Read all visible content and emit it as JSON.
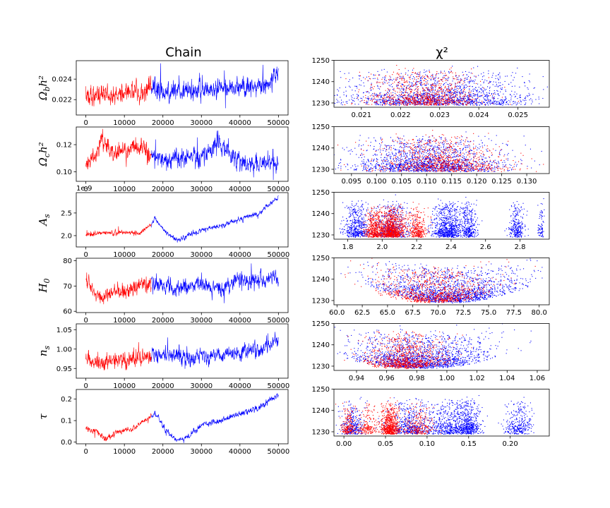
{
  "figure": {
    "left_title": "Chain",
    "right_title": "χ²",
    "colors": {
      "burn_in": "#ff0000",
      "chain": "#0000ff"
    }
  },
  "chart_data": [
    {
      "type": "line",
      "panel": "chain",
      "ylabel": "Ω_b h²",
      "title": "",
      "series": [
        {
          "name": "",
          "color": "#ff0000"
        },
        {
          "name": "",
          "color": "#0000ff"
        }
      ],
      "x_range": [
        0,
        50000
      ],
      "ylim": [
        0.0205,
        0.0258
      ],
      "burn_in_end": 17000,
      "x_ticks": [
        0,
        10000,
        20000,
        30000,
        40000,
        50000
      ],
      "x_tick_labels": [
        "0",
        "10000",
        "20000",
        "30000",
        "40000",
        "50000"
      ],
      "y_ticks": [
        0.022,
        0.024
      ],
      "y_tick_labels": [
        "0.022",
        "0.024"
      ],
      "trend": [
        [
          0,
          0.0225
        ],
        [
          5000,
          0.0224
        ],
        [
          10000,
          0.0227
        ],
        [
          17000,
          0.0232
        ],
        [
          20000,
          0.0228
        ],
        [
          30000,
          0.0229
        ],
        [
          40000,
          0.0232
        ],
        [
          45000,
          0.0232
        ],
        [
          50000,
          0.0244
        ]
      ],
      "noise": 0.0006
    },
    {
      "type": "line",
      "panel": "chain",
      "ylabel": "Ω_c h²",
      "title": "",
      "series": [
        {
          "name": "",
          "color": "#ff0000"
        },
        {
          "name": "",
          "color": "#0000ff"
        }
      ],
      "x_range": [
        0,
        50000
      ],
      "ylim": [
        0.093,
        0.133
      ],
      "burn_in_end": 17000,
      "x_ticks": [
        0,
        10000,
        20000,
        30000,
        40000,
        50000
      ],
      "x_tick_labels": [
        "0",
        "10000",
        "20000",
        "30000",
        "40000",
        "50000"
      ],
      "y_ticks": [
        0.1,
        0.12
      ],
      "y_tick_labels": [
        "0.10",
        "0.12"
      ],
      "trend": [
        [
          0,
          0.106
        ],
        [
          2500,
          0.112
        ],
        [
          4000,
          0.126
        ],
        [
          7000,
          0.114
        ],
        [
          10000,
          0.115
        ],
        [
          13000,
          0.118
        ],
        [
          17000,
          0.112
        ],
        [
          22000,
          0.109
        ],
        [
          27000,
          0.112
        ],
        [
          30000,
          0.11
        ],
        [
          34000,
          0.12
        ],
        [
          38000,
          0.114
        ],
        [
          42000,
          0.103
        ],
        [
          46000,
          0.108
        ],
        [
          50000,
          0.107
        ]
      ],
      "noise": 0.004
    },
    {
      "type": "line",
      "panel": "chain",
      "ylabel": "A_s",
      "title": "",
      "series": [
        {
          "name": "",
          "color": "#ff0000"
        },
        {
          "name": "",
          "color": "#0000ff"
        }
      ],
      "x_range": [
        0,
        50000
      ],
      "ylim": [
        1.75,
        2.95
      ],
      "burn_in_end": 17000,
      "offset_text": "1e-9",
      "x_ticks": [
        0,
        10000,
        20000,
        30000,
        40000,
        50000
      ],
      "x_tick_labels": [
        "0",
        "10000",
        "20000",
        "30000",
        "40000",
        "50000"
      ],
      "y_ticks": [
        2.0,
        2.5
      ],
      "y_tick_labels": [
        "2.0",
        "2.5"
      ],
      "trend": [
        [
          0,
          2.02
        ],
        [
          5000,
          2.05
        ],
        [
          10000,
          2.07
        ],
        [
          14000,
          2.05
        ],
        [
          17000,
          2.25
        ],
        [
          18000,
          2.38
        ],
        [
          21000,
          2.05
        ],
        [
          24000,
          1.88
        ],
        [
          27000,
          2.03
        ],
        [
          30000,
          2.12
        ],
        [
          35000,
          2.22
        ],
        [
          40000,
          2.36
        ],
        [
          45000,
          2.5
        ],
        [
          48000,
          2.72
        ],
        [
          50000,
          2.85
        ]
      ],
      "noise": 0.03
    },
    {
      "type": "line",
      "panel": "chain",
      "ylabel": "H_0",
      "title": "",
      "series": [
        {
          "name": "",
          "color": "#ff0000"
        },
        {
          "name": "",
          "color": "#0000ff"
        }
      ],
      "x_range": [
        0,
        50000
      ],
      "ylim": [
        59.5,
        81
      ],
      "burn_in_end": 17000,
      "x_ticks": [
        0,
        10000,
        20000,
        30000,
        40000,
        50000
      ],
      "x_tick_labels": [
        "0",
        "10000",
        "20000",
        "30000",
        "40000",
        "50000"
      ],
      "y_ticks": [
        60,
        70,
        80
      ],
      "y_tick_labels": [
        "60",
        "70",
        "80"
      ],
      "trend": [
        [
          0,
          72
        ],
        [
          3000,
          67
        ],
        [
          5000,
          65
        ],
        [
          8000,
          69
        ],
        [
          10000,
          67
        ],
        [
          14000,
          71
        ],
        [
          17000,
          71
        ],
        [
          22000,
          69
        ],
        [
          27000,
          70
        ],
        [
          30000,
          71
        ],
        [
          35000,
          69
        ],
        [
          40000,
          73
        ],
        [
          44000,
          72
        ],
        [
          50000,
          74
        ]
      ],
      "noise": 1.8
    },
    {
      "type": "line",
      "panel": "chain",
      "ylabel": "n_s",
      "title": "",
      "series": [
        {
          "name": "",
          "color": "#ff0000"
        },
        {
          "name": "",
          "color": "#0000ff"
        }
      ],
      "x_range": [
        0,
        50000
      ],
      "ylim": [
        0.925,
        1.065
      ],
      "burn_in_end": 17000,
      "x_ticks": [
        0,
        10000,
        20000,
        30000,
        40000,
        50000
      ],
      "x_tick_labels": [
        "0",
        "10000",
        "20000",
        "30000",
        "40000",
        "50000"
      ],
      "y_ticks": [
        0.95,
        1.0,
        1.05
      ],
      "y_tick_labels": [
        "0.95",
        "1.00",
        "1.05"
      ],
      "trend": [
        [
          0,
          0.97
        ],
        [
          5000,
          0.965
        ],
        [
          10000,
          0.972
        ],
        [
          17000,
          0.985
        ],
        [
          22000,
          0.982
        ],
        [
          30000,
          0.98
        ],
        [
          40000,
          0.99
        ],
        [
          45000,
          0.998
        ],
        [
          50000,
          1.025
        ]
      ],
      "noise": 0.012
    },
    {
      "type": "line",
      "panel": "chain",
      "ylabel": "τ",
      "title": "",
      "series": [
        {
          "name": "",
          "color": "#ff0000"
        },
        {
          "name": "",
          "color": "#0000ff"
        }
      ],
      "x_range": [
        0,
        50000
      ],
      "ylim": [
        -0.008,
        0.245
      ],
      "burn_in_end": 17000,
      "x_ticks": [
        0,
        10000,
        20000,
        30000,
        40000,
        50000
      ],
      "x_tick_labels": [
        "0",
        "10000",
        "20000",
        "30000",
        "40000",
        "50000"
      ],
      "y_ticks": [
        0.0,
        0.1,
        0.2
      ],
      "y_tick_labels": [
        "0.0",
        "0.1",
        "0.2"
      ],
      "trend": [
        [
          0,
          0.06
        ],
        [
          3000,
          0.05
        ],
        [
          5000,
          0.01
        ],
        [
          8000,
          0.05
        ],
        [
          12000,
          0.06
        ],
        [
          17000,
          0.12
        ],
        [
          18000,
          0.13
        ],
        [
          21000,
          0.05
        ],
        [
          24000,
          0.005
        ],
        [
          27000,
          0.03
        ],
        [
          30000,
          0.08
        ],
        [
          35000,
          0.1
        ],
        [
          40000,
          0.13
        ],
        [
          45000,
          0.16
        ],
        [
          48000,
          0.2
        ],
        [
          50000,
          0.22
        ]
      ],
      "noise": 0.008
    },
    {
      "type": "scatter",
      "panel": "chi2",
      "ylabel": "",
      "xlabel": "",
      "title": "",
      "series": [
        {
          "name": "",
          "color": "#ff0000"
        },
        {
          "name": "",
          "color": "#0000ff"
        }
      ],
      "xlim": [
        0.0203,
        0.0258
      ],
      "ylim": [
        1228,
        1250
      ],
      "x_ticks": [
        0.021,
        0.022,
        0.023,
        0.024,
        0.025
      ],
      "x_tick_labels": [
        "0.021",
        "0.022",
        "0.023",
        "0.024",
        "0.025"
      ],
      "y_ticks": [
        1230,
        1240,
        1250
      ],
      "y_tick_labels": [
        "1230",
        "1240",
        "1250"
      ],
      "blue": {
        "center": 0.0229,
        "spread": 0.0012
      },
      "red": {
        "center": 0.0226,
        "spread": 0.0007
      },
      "min_chi2": 1229,
      "curvature": 26
    },
    {
      "type": "scatter",
      "panel": "chi2",
      "ylabel": "",
      "xlabel": "",
      "title": "",
      "series": [
        {
          "name": "",
          "color": "#ff0000"
        },
        {
          "name": "",
          "color": "#0000ff"
        }
      ],
      "xlim": [
        0.0915,
        0.1345
      ],
      "ylim": [
        1228,
        1250
      ],
      "x_ticks": [
        0.095,
        0.1,
        0.105,
        0.11,
        0.115,
        0.12,
        0.125,
        0.13
      ],
      "x_tick_labels": [
        "0.095",
        "0.100",
        "0.105",
        "0.110",
        "0.115",
        "0.120",
        "0.125",
        "0.130"
      ],
      "y_ticks": [
        1230,
        1240,
        1250
      ],
      "y_tick_labels": [
        "1230",
        "1240",
        "1250"
      ],
      "blue": {
        "center": 0.11,
        "spread": 0.0075
      },
      "red": {
        "center": 0.113,
        "spread": 0.0065
      },
      "min_chi2": 1229,
      "curvature": 22
    },
    {
      "type": "scatter",
      "panel": "chi2",
      "ylabel": "",
      "xlabel": "",
      "title": "",
      "series": [
        {
          "name": "",
          "color": "#ff0000"
        },
        {
          "name": "",
          "color": "#0000ff"
        }
      ],
      "xlim": [
        1.72,
        2.97
      ],
      "ylim": [
        1228,
        1250
      ],
      "x_ticks": [
        1.8,
        2.0,
        2.2,
        2.4,
        2.6,
        2.8
      ],
      "x_tick_labels": [
        "1.8",
        "2.0",
        "2.2",
        "2.4",
        "2.6",
        "2.8"
      ],
      "y_ticks": [
        1230,
        1240,
        1250
      ],
      "y_tick_labels": [
        "1230",
        "1240",
        "1250"
      ],
      "blue_clusters": [
        [
          1.85,
          0.08,
          0.18
        ],
        [
          2.05,
          0.12,
          0.22
        ],
        [
          2.38,
          0.1,
          0.3
        ],
        [
          2.5,
          0.05,
          0.12
        ],
        [
          2.78,
          0.05,
          0.1
        ],
        [
          2.92,
          0.02,
          0.03
        ]
      ],
      "red_clusters": [
        [
          1.95,
          0.06,
          0.25
        ],
        [
          2.05,
          0.08,
          0.55
        ],
        [
          2.2,
          0.06,
          0.2
        ]
      ],
      "min_chi2": 1229,
      "curvature": 0
    },
    {
      "type": "scatter",
      "panel": "chi2",
      "ylabel": "",
      "xlabel": "",
      "title": "",
      "series": [
        {
          "name": "",
          "color": "#ff0000"
        },
        {
          "name": "",
          "color": "#0000ff"
        }
      ],
      "xlim": [
        59.7,
        81.0
      ],
      "ylim": [
        1228,
        1250
      ],
      "x_ticks": [
        60.0,
        62.5,
        65.0,
        67.5,
        70.0,
        72.5,
        75.0,
        77.5,
        80.0
      ],
      "x_tick_labels": [
        "60.0",
        "62.5",
        "65.0",
        "67.5",
        "70.0",
        "72.5",
        "75.0",
        "77.5",
        "80.0"
      ],
      "y_ticks": [
        1230,
        1240,
        1250
      ],
      "y_tick_labels": [
        "1230",
        "1240",
        "1250"
      ],
      "blue": {
        "center": 71.0,
        "spread": 3.6
      },
      "red": {
        "center": 69.5,
        "spread": 2.8
      },
      "min_chi2": 1229,
      "curvature": 0.12
    },
    {
      "type": "scatter",
      "panel": "chi2",
      "ylabel": "",
      "xlabel": "",
      "title": "",
      "series": [
        {
          "name": "",
          "color": "#ff0000"
        },
        {
          "name": "",
          "color": "#0000ff"
        }
      ],
      "xlim": [
        0.925,
        1.068
      ],
      "ylim": [
        1228,
        1250
      ],
      "x_ticks": [
        0.94,
        0.96,
        0.98,
        1.0,
        1.02,
        1.04,
        1.06
      ],
      "x_tick_labels": [
        "0.94",
        "0.96",
        "0.98",
        "1.00",
        "1.02",
        "1.04",
        "1.06"
      ],
      "y_ticks": [
        1230,
        1240,
        1250
      ],
      "y_tick_labels": [
        "1230",
        "1240",
        "1250"
      ],
      "blue": {
        "center": 0.983,
        "spread": 0.022
      },
      "red": {
        "center": 0.972,
        "spread": 0.013
      },
      "min_chi2": 1229,
      "curvature": 1800
    },
    {
      "type": "scatter",
      "panel": "chi2",
      "ylabel": "",
      "xlabel": "",
      "title": "",
      "series": [
        {
          "name": "",
          "color": "#ff0000"
        },
        {
          "name": "",
          "color": "#0000ff"
        }
      ],
      "xlim": [
        -0.012,
        0.247
      ],
      "ylim": [
        1228,
        1250
      ],
      "x_ticks": [
        0.0,
        0.05,
        0.1,
        0.15,
        0.2
      ],
      "x_tick_labels": [
        "0.00",
        "0.05",
        "0.10",
        "0.15",
        "0.20"
      ],
      "y_ticks": [
        1230,
        1240,
        1250
      ],
      "y_tick_labels": [
        "1230",
        "1240",
        "1250"
      ],
      "blue_clusters": [
        [
          0.01,
          0.015,
          0.12
        ],
        [
          0.08,
          0.03,
          0.2
        ],
        [
          0.125,
          0.025,
          0.18
        ],
        [
          0.15,
          0.015,
          0.2
        ],
        [
          0.21,
          0.02,
          0.12
        ]
      ],
      "red_clusters": [
        [
          0.005,
          0.01,
          0.12
        ],
        [
          0.03,
          0.015,
          0.12
        ],
        [
          0.055,
          0.012,
          0.4
        ],
        [
          0.09,
          0.02,
          0.15
        ]
      ],
      "min_chi2": 1229,
      "curvature": 0
    }
  ]
}
